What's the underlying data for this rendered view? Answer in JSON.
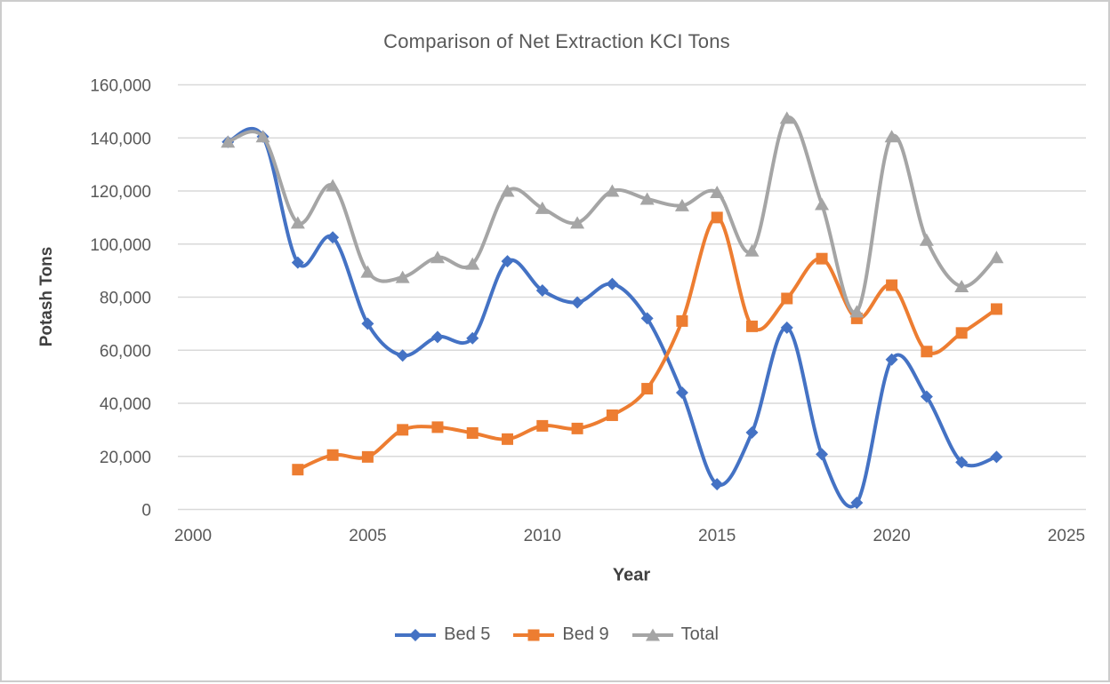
{
  "chart_data": {
    "type": "line",
    "title": "Comparison of Net Extraction KCI Tons",
    "xlabel": "Year",
    "ylabel": "Potash Tons",
    "x": [
      2001,
      2002,
      2003,
      2004,
      2005,
      2006,
      2007,
      2008,
      2009,
      2010,
      2011,
      2012,
      2013,
      2014,
      2015,
      2016,
      2017,
      2018,
      2019,
      2020,
      2021,
      2022,
      2023
    ],
    "series": [
      {
        "name": "Bed 5",
        "color": "#4472C4",
        "marker": "diamond",
        "values": [
          138500,
          140500,
          93000,
          102500,
          70000,
          58000,
          65000,
          64500,
          93500,
          82500,
          78000,
          85000,
          72000,
          44000,
          9500,
          29000,
          68500,
          20800,
          2500,
          56500,
          42500,
          17800,
          19800
        ]
      },
      {
        "name": "Bed 9",
        "color": "#ED7D31",
        "marker": "square",
        "values": [
          null,
          null,
          15000,
          20500,
          19800,
          30000,
          31000,
          28800,
          26500,
          31500,
          30500,
          35500,
          45500,
          71000,
          110000,
          69000,
          79500,
          94500,
          72000,
          84500,
          59500,
          66500,
          75500
        ]
      },
      {
        "name": "Total",
        "color": "#A5A5A5",
        "marker": "triangle",
        "values": [
          138500,
          140500,
          108000,
          122000,
          89500,
          87500,
          95000,
          92500,
          120000,
          113500,
          108000,
          120000,
          117000,
          114500,
          119500,
          97500,
          147500,
          115000,
          74500,
          140500,
          101500,
          84000,
          95000
        ]
      }
    ],
    "ylim": [
      0,
      160000
    ],
    "y_tick_step": 20000,
    "y_tick_labels": [
      "0",
      "20,000",
      "40,000",
      "60,000",
      "80,000",
      "100,000",
      "120,000",
      "140,000",
      "160,000"
    ],
    "xlim": [
      2000,
      2025
    ],
    "x_tick_step": 5,
    "x_tick_labels": [
      "2000",
      "2005",
      "2010",
      "2015",
      "2020",
      "2025"
    ],
    "grid": true,
    "smooth": true,
    "legend_position": "bottom"
  },
  "palette": {
    "gridline": "#D9D9D9",
    "tick_text": "#595959",
    "title_text": "#595959",
    "axis_title_text": "#404040",
    "page_border": "#CCCCCC",
    "background": "#FFFFFF"
  }
}
